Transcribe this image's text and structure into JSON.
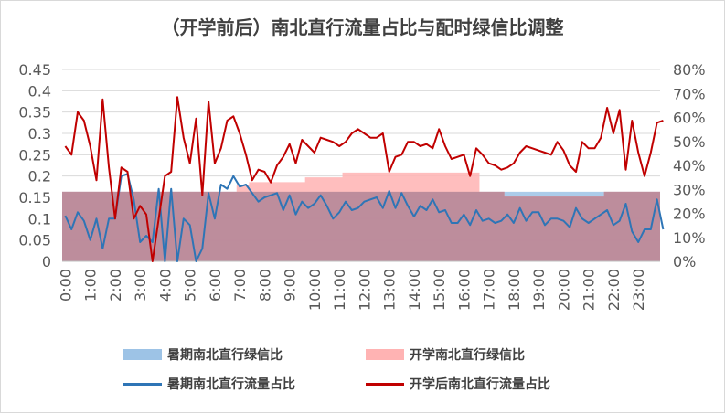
{
  "chart_data": {
    "type": "line",
    "title": "（开学前后）南北直行流量占比与配时绿信比调整",
    "x_tick_labels": [
      "0:00",
      "1:00",
      "2:00",
      "3:00",
      "4:00",
      "5:00",
      "6:00",
      "7:00",
      "8:00",
      "9:00",
      "10:00",
      "11:00",
      "12:00",
      "13:00",
      "14:00",
      "15:00",
      "16:00",
      "17:00",
      "18:00",
      "19:00",
      "20:00",
      "21:00",
      "22:00",
      "23:00"
    ],
    "x_interval_minutes": 15,
    "y_left": {
      "min": 0,
      "max": 0.45,
      "step": 0.05,
      "ticks": [
        "0",
        "0.05",
        "0.1",
        "0.15",
        "0.2",
        "0.25",
        "0.3",
        "0.35",
        "0.4",
        "0.45"
      ]
    },
    "y_right": {
      "min": 0,
      "max": 0.8,
      "step": 0.1,
      "ticks": [
        "0%",
        "10%",
        "20%",
        "30%",
        "40%",
        "50%",
        "60%",
        "70%",
        "80%"
      ]
    },
    "grid": true,
    "legend_position": "bottom",
    "series": [
      {
        "name": "暑期南北直行绿信比",
        "type": "area",
        "axis": "right",
        "color": "#9dc3e6",
        "values": [
          0.29,
          0.29,
          0.29,
          0.29,
          0.29,
          0.29,
          0.29,
          0.29,
          0.29,
          0.29,
          0.29,
          0.29,
          0.29,
          0.29,
          0.29,
          0.29,
          0.29,
          0.29,
          0.29,
          0.29,
          0.29,
          0.29,
          0.29,
          0.29,
          0.29,
          0.29,
          0.29,
          0.29,
          0.29,
          0.29,
          0.29,
          0.29,
          0.29,
          0.29,
          0.29,
          0.29,
          0.29,
          0.29,
          0.29,
          0.29,
          0.29,
          0.29,
          0.29,
          0.29,
          0.29,
          0.29,
          0.29,
          0.29,
          0.29,
          0.29,
          0.29,
          0.29,
          0.29,
          0.29,
          0.29,
          0.29,
          0.29,
          0.29,
          0.29,
          0.29,
          0.29,
          0.29,
          0.29,
          0.29,
          0.29,
          0.29,
          0.29,
          0.29,
          0.29,
          0.29,
          0.29,
          0.29,
          0.29,
          0.29,
          0.29,
          0.29,
          0.29,
          0.29,
          0.29,
          0.29,
          0.29,
          0.29,
          0.29,
          0.29,
          0.29,
          0.29,
          0.29,
          0.29,
          0.29,
          0.29,
          0.29,
          0.29,
          0.29,
          0.29,
          0.29,
          0.29
        ]
      },
      {
        "name": "开学南北直行绿信比",
        "type": "area",
        "axis": "right",
        "color": "#ffb3b3",
        "values": [
          0.29,
          0.29,
          0.29,
          0.29,
          0.29,
          0.29,
          0.29,
          0.29,
          0.29,
          0.29,
          0.29,
          0.29,
          0.29,
          0.29,
          0.29,
          0.29,
          0.29,
          0.29,
          0.29,
          0.29,
          0.29,
          0.29,
          0.29,
          0.29,
          0.29,
          0.29,
          0.29,
          0.29,
          0.32,
          0.32,
          0.33,
          0.33,
          0.33,
          0.33,
          0.33,
          0.33,
          0.33,
          0.33,
          0.33,
          0.35,
          0.35,
          0.35,
          0.35,
          0.35,
          0.35,
          0.37,
          0.37,
          0.37,
          0.37,
          0.37,
          0.37,
          0.37,
          0.37,
          0.37,
          0.37,
          0.37,
          0.37,
          0.37,
          0.37,
          0.37,
          0.37,
          0.37,
          0.37,
          0.37,
          0.37,
          0.37,
          0.37,
          0.29,
          0.29,
          0.29,
          0.29,
          0.27,
          0.27,
          0.27,
          0.27,
          0.27,
          0.27,
          0.27,
          0.27,
          0.27,
          0.27,
          0.27,
          0.27,
          0.27,
          0.27,
          0.27,
          0.27,
          0.29,
          0.29,
          0.29,
          0.29,
          0.29,
          0.29,
          0.29,
          0.29,
          0.29
        ]
      },
      {
        "name": "暑期南北直行流量占比",
        "type": "line",
        "axis": "left",
        "color": "#2e75b6",
        "values": [
          0.107,
          0.075,
          0.115,
          0.095,
          0.05,
          0.1,
          0.03,
          0.1,
          0.1,
          0.2,
          0.205,
          0.145,
          0.045,
          0.06,
          0.045,
          0.17,
          0.0,
          0.17,
          0.0,
          0.1,
          0.085,
          0.0,
          0.03,
          0.16,
          0.1,
          0.18,
          0.17,
          0.2,
          0.175,
          0.18,
          0.16,
          0.14,
          0.15,
          0.155,
          0.16,
          0.12,
          0.155,
          0.11,
          0.14,
          0.125,
          0.135,
          0.155,
          0.13,
          0.1,
          0.115,
          0.14,
          0.12,
          0.125,
          0.14,
          0.145,
          0.15,
          0.125,
          0.165,
          0.125,
          0.16,
          0.13,
          0.105,
          0.13,
          0.12,
          0.145,
          0.115,
          0.12,
          0.09,
          0.09,
          0.11,
          0.085,
          0.12,
          0.095,
          0.1,
          0.09,
          0.095,
          0.11,
          0.09,
          0.125,
          0.095,
          0.115,
          0.115,
          0.085,
          0.1,
          0.1,
          0.095,
          0.08,
          0.125,
          0.1,
          0.09,
          0.1,
          0.11,
          0.12,
          0.085,
          0.095,
          0.135,
          0.07,
          0.045,
          0.075,
          0.075,
          0.145,
          0.075
        ]
      },
      {
        "name": "开学后南北直行流量占比",
        "type": "line",
        "axis": "left",
        "color": "#c00000",
        "values": [
          0.27,
          0.25,
          0.35,
          0.33,
          0.27,
          0.19,
          0.38,
          0.22,
          0.1,
          0.22,
          0.21,
          0.1,
          0.13,
          0.11,
          0.0,
          0.1,
          0.2,
          0.21,
          0.385,
          0.29,
          0.23,
          0.335,
          0.155,
          0.375,
          0.23,
          0.265,
          0.33,
          0.34,
          0.3,
          0.25,
          0.19,
          0.215,
          0.21,
          0.185,
          0.225,
          0.245,
          0.275,
          0.23,
          0.285,
          0.27,
          0.255,
          0.29,
          0.285,
          0.28,
          0.27,
          0.28,
          0.3,
          0.31,
          0.3,
          0.29,
          0.29,
          0.3,
          0.21,
          0.245,
          0.25,
          0.28,
          0.28,
          0.27,
          0.275,
          0.265,
          0.31,
          0.27,
          0.24,
          0.245,
          0.25,
          0.2,
          0.265,
          0.25,
          0.23,
          0.225,
          0.215,
          0.22,
          0.23,
          0.255,
          0.27,
          0.265,
          0.26,
          0.255,
          0.25,
          0.28,
          0.26,
          0.225,
          0.21,
          0.28,
          0.265,
          0.265,
          0.29,
          0.36,
          0.3,
          0.355,
          0.215,
          0.33,
          0.255,
          0.2,
          0.255,
          0.325,
          0.33
        ]
      }
    ]
  }
}
